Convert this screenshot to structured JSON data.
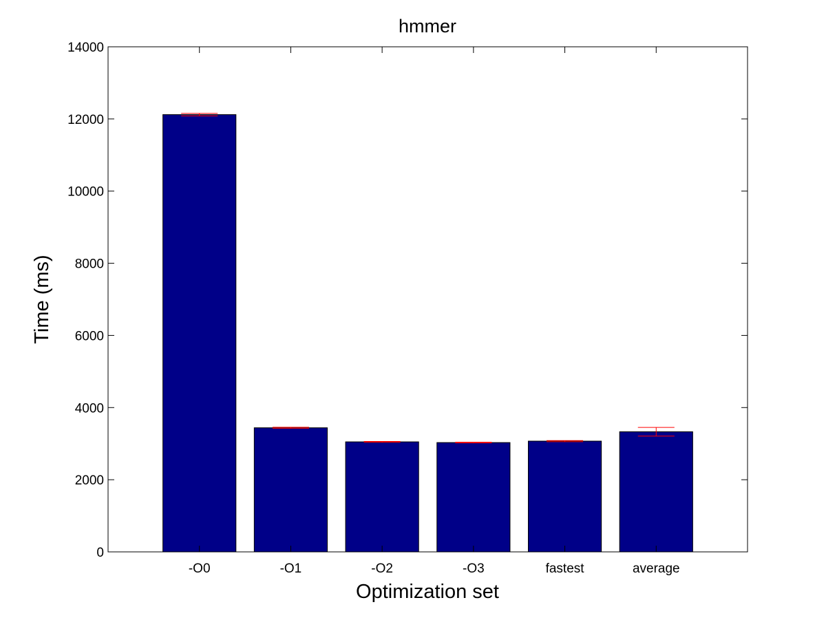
{
  "chart_data": {
    "type": "bar",
    "title": "hmmer",
    "xlabel": "Optimization set",
    "ylabel": "Time (ms)",
    "categories": [
      "-O0",
      "-O1",
      "-O2",
      "-O3",
      "fastest",
      "average"
    ],
    "values": [
      12120,
      3440,
      3050,
      3030,
      3070,
      3330
    ],
    "errors": [
      35,
      15,
      12,
      10,
      15,
      120
    ],
    "ylim": [
      0,
      14000
    ],
    "yticks": [
      0,
      2000,
      4000,
      6000,
      8000,
      10000,
      12000,
      14000
    ],
    "grid": false,
    "legend": "none",
    "colors": {
      "bar_fill": "#000088",
      "bar_edge": "#000000",
      "error_bar": "#ff0000",
      "axes": "#000000"
    }
  }
}
